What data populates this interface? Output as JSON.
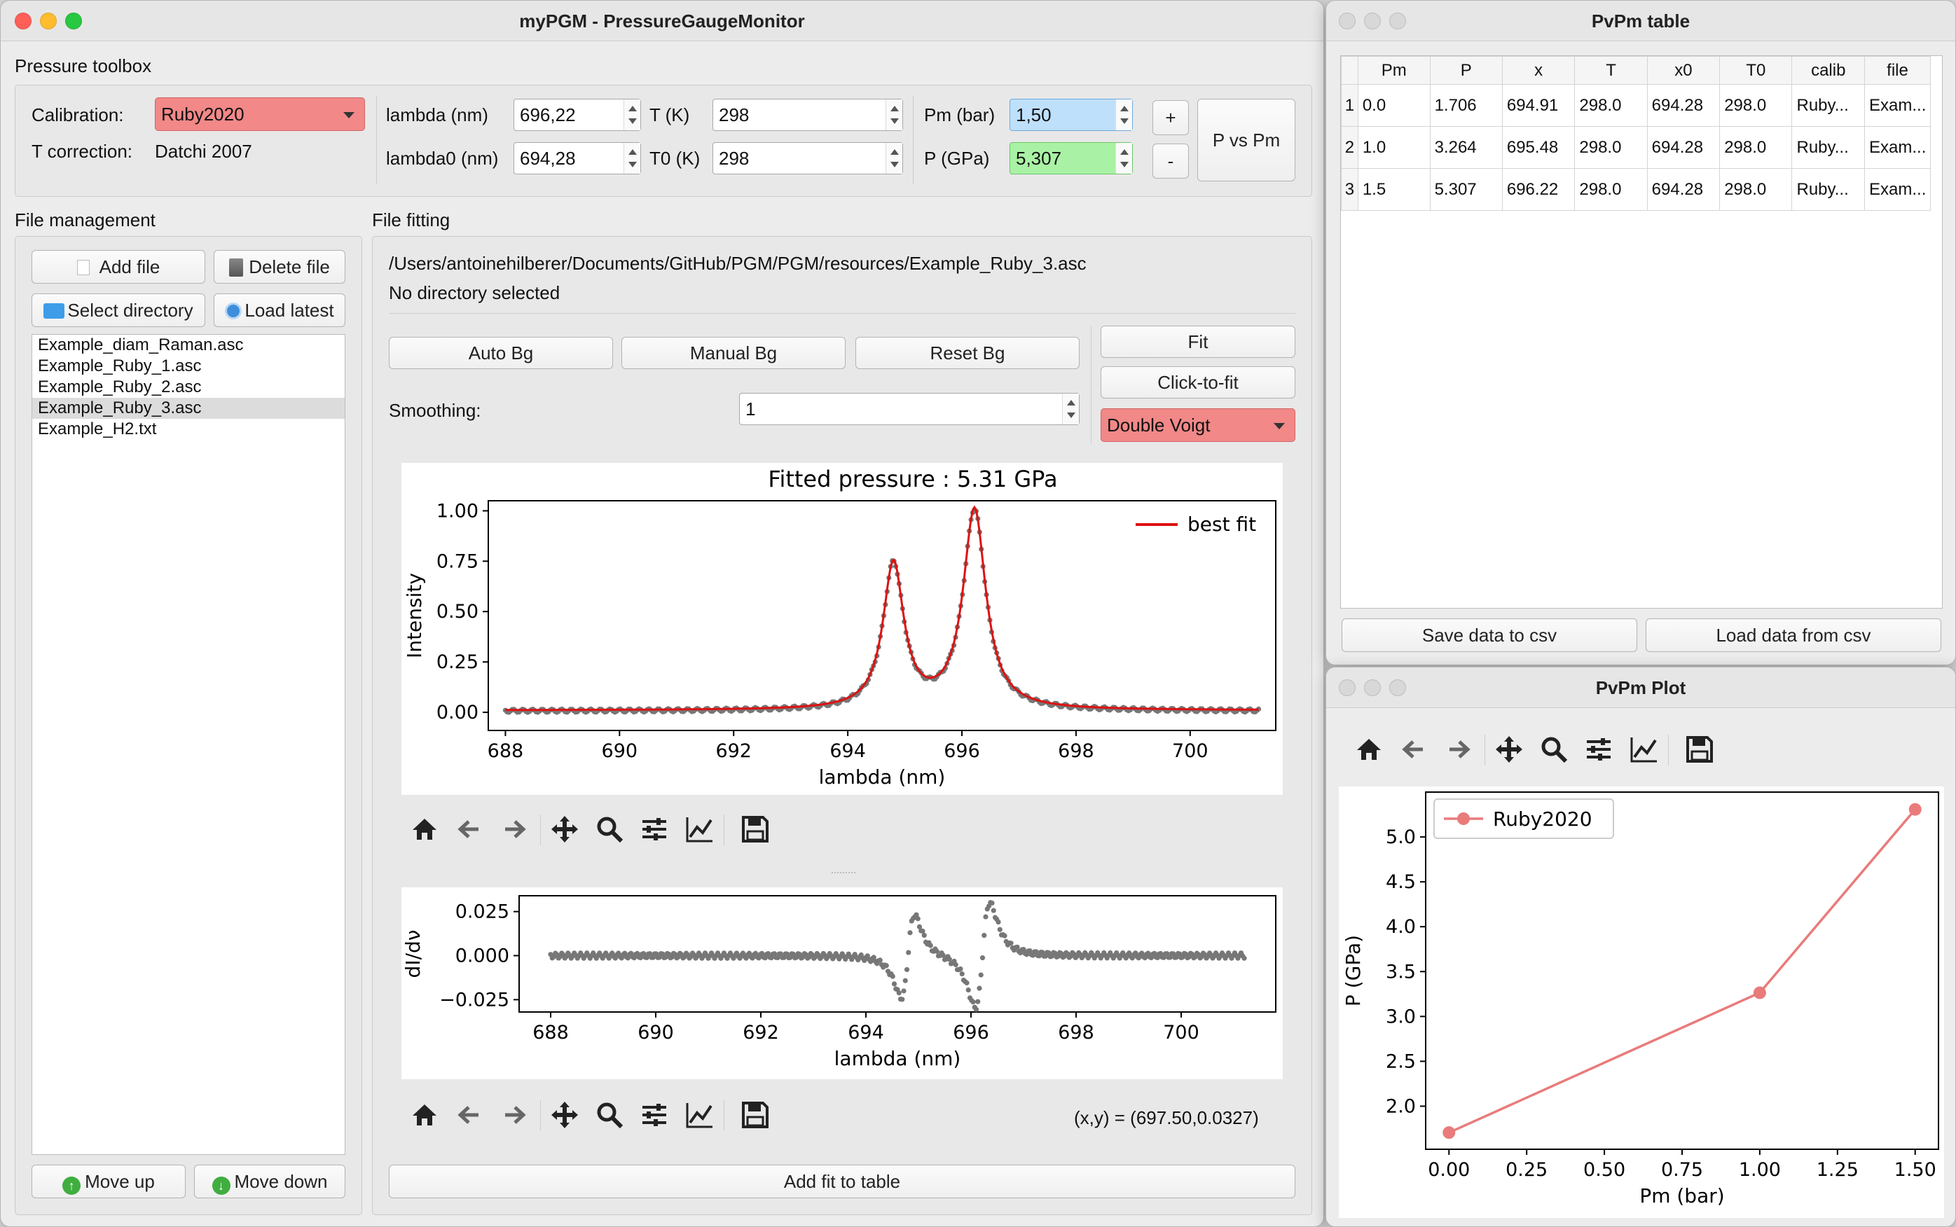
{
  "main_window": {
    "title": "myPGM - PressureGaugeMonitor",
    "toolbox": {
      "title": "Pressure toolbox",
      "calibration_label": "Calibration:",
      "calibration_value": "Ruby2020",
      "tcorr_label": "T correction:",
      "tcorr_value": "Datchi 2007",
      "lambda_label": "lambda (nm)",
      "lambda_value": "696,22",
      "lambda0_label": "lambda0 (nm)",
      "lambda0_value": "694,28",
      "t_label": "T (K)",
      "t_value": "298",
      "t0_label": "T0 (K)",
      "t0_value": "298",
      "pm_label": "Pm (bar)",
      "pm_value": "1,50",
      "p_label": "P (GPa)",
      "p_value": "5,307",
      "plus_label": "+",
      "minus_label": "-",
      "pvspm_label": "P vs Pm"
    },
    "file_management": {
      "title": "File management",
      "add_file": "Add file",
      "delete_file": "Delete file",
      "select_directory": "Select directory",
      "load_latest": "Load latest",
      "files": [
        "Example_diam_Raman.asc",
        "Example_Ruby_1.asc",
        "Example_Ruby_2.asc",
        "Example_Ruby_3.asc",
        "Example_H2.txt"
      ],
      "move_up": "Move up",
      "move_down": "Move down"
    },
    "file_fitting": {
      "title": "File fitting",
      "path": "/Users/antoinehilberer/Documents/GitHub/PGM/PGM/resources/Example_Ruby_3.asc",
      "directory_status": "No directory selected",
      "auto_bg": "Auto Bg",
      "manual_bg": "Manual Bg",
      "reset_bg": "Reset Bg",
      "fit": "Fit",
      "click_to_fit": "Click-to-fit",
      "smoothing_label": "Smoothing:",
      "smoothing_value": "1",
      "model": "Double Voigt",
      "coords_readout": "(x,y) = (697.50,0.0327)",
      "add_fit": "Add fit to table"
    }
  },
  "table_window": {
    "title": "PvPm table",
    "headers": [
      "Pm",
      "P",
      "x",
      "T",
      "x0",
      "T0",
      "calib",
      "file"
    ],
    "rows": [
      [
        "0.0",
        "1.706",
        "694.91",
        "298.0",
        "694.28",
        "298.0",
        "Ruby...",
        "Exam..."
      ],
      [
        "1.0",
        "3.264",
        "695.48",
        "298.0",
        "694.28",
        "298.0",
        "Ruby...",
        "Exam..."
      ],
      [
        "1.5",
        "5.307",
        "696.22",
        "298.0",
        "694.28",
        "298.0",
        "Ruby...",
        "Exam..."
      ]
    ],
    "save_csv": "Save data to csv",
    "load_csv": "Load data from csv"
  },
  "plot_window": {
    "title": "PvPm Plot"
  },
  "chart_data": [
    {
      "type": "line",
      "title": "Fitted pressure :        5.31 GPa",
      "xlabel": "lambda (nm)",
      "ylabel": "Intensity",
      "xlim": [
        687.7,
        701.5
      ],
      "ylim": [
        -0.09,
        1.05
      ],
      "xticks": [
        688,
        690,
        692,
        694,
        696,
        698,
        700
      ],
      "yticks": [
        "0.00",
        "0.25",
        "0.50",
        "0.75",
        "1.00"
      ],
      "legend": "top-right",
      "peaks": [
        {
          "center": 694.8,
          "height": 0.72,
          "width": 0.22
        },
        {
          "center": 696.22,
          "height": 0.99,
          "width": 0.24
        }
      ],
      "x_range": [
        688.0,
        701.2
      ],
      "series": [
        {
          "name": "data",
          "type": "scatter",
          "color": "#777777"
        },
        {
          "name": "best fit",
          "type": "line",
          "color": "#dd1111"
        }
      ]
    },
    {
      "type": "scatter",
      "xlabel": "lambda (nm)",
      "ylabel": "dI/dν",
      "xlim": [
        687.4,
        701.8
      ],
      "ylim": [
        -0.032,
        0.034
      ],
      "xticks": [
        688,
        690,
        692,
        694,
        696,
        698,
        700
      ],
      "yticks": [
        "−0.025",
        "0.000",
        "0.025"
      ],
      "color": "#777777",
      "x_range": [
        688.0,
        701.2
      ]
    },
    {
      "type": "line",
      "xlabel": "Pm (bar)",
      "ylabel": "P (GPa)",
      "xlim": [
        -0.075,
        1.575
      ],
      "ylim": [
        1.52,
        5.5
      ],
      "xticks": [
        "0.00",
        "0.25",
        "0.50",
        "0.75",
        "1.00",
        "1.25",
        "1.50"
      ],
      "yticks": [
        "2.0",
        "2.5",
        "3.0",
        "3.5",
        "4.0",
        "4.5",
        "5.0"
      ],
      "legend": "top-left",
      "series": [
        {
          "name": "Ruby2020",
          "x": [
            0.0,
            1.0,
            1.5
          ],
          "y": [
            1.706,
            3.264,
            5.307
          ],
          "color": "#e97b7b"
        }
      ]
    }
  ]
}
